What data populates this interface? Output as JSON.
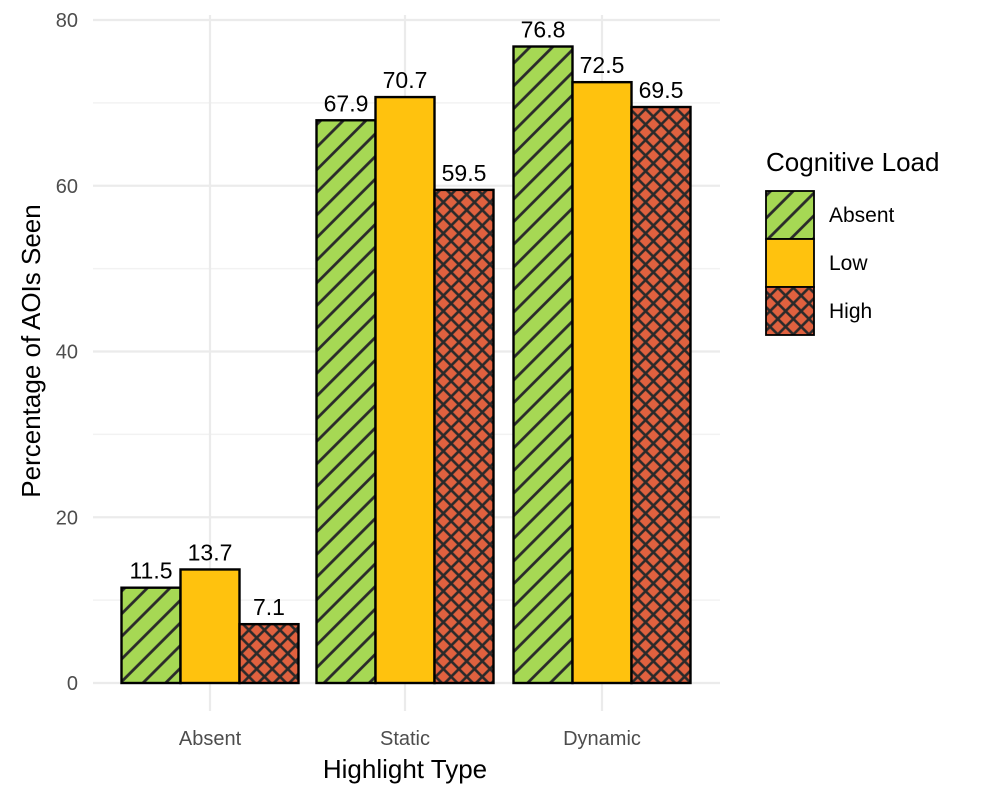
{
  "chart_data": {
    "type": "bar",
    "title": "",
    "xlabel": "Highlight Type",
    "ylabel": "Percentage of AOIs Seen",
    "ylim": [
      0,
      80
    ],
    "yticks": [
      0,
      20,
      40,
      60,
      80
    ],
    "categories": [
      "Absent",
      "Static",
      "Dynamic"
    ],
    "series": [
      {
        "name": "Absent",
        "values": [
          11.5,
          67.9,
          76.8
        ],
        "color": "#A6D854",
        "pattern": "diagonal-stripes"
      },
      {
        "name": "Low",
        "values": [
          13.7,
          70.7,
          72.5
        ],
        "color": "#FFC20E",
        "pattern": "none"
      },
      {
        "name": "High",
        "values": [
          7.1,
          59.5,
          69.5
        ],
        "color": "#E0613F",
        "pattern": "crosshatch"
      }
    ],
    "data_labels": [
      [
        "11.5",
        "67.9",
        "76.8"
      ],
      [
        "13.7",
        "70.7",
        "72.5"
      ],
      [
        "7.1",
        "59.5",
        "69.5"
      ]
    ],
    "legend": {
      "title": "Cognitive Load",
      "placement": "right"
    },
    "grid": true
  }
}
